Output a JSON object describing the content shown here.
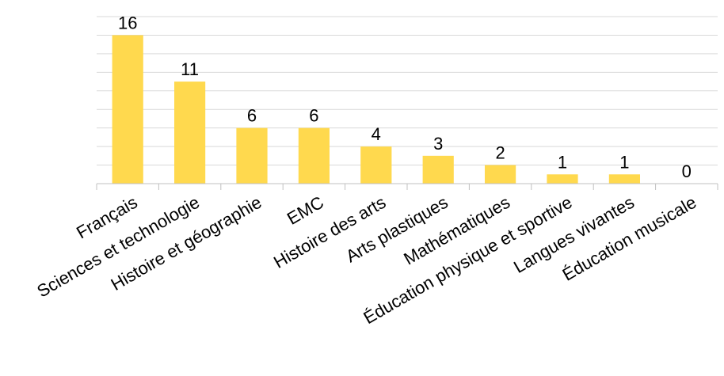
{
  "chart_data": {
    "type": "bar",
    "title": "",
    "xlabel": "",
    "ylabel": "",
    "categories": [
      "Français",
      "Sciences et technologie",
      "Histoire et géographie",
      "EMC",
      "Histoire des arts",
      "Arts plastiques",
      "Mathématiques",
      "Éducation physique et sportive",
      "Langues vivantes",
      "Éducation musicale"
    ],
    "values": [
      16,
      11,
      6,
      6,
      4,
      3,
      2,
      1,
      1,
      0
    ],
    "ylim": [
      0,
      18
    ],
    "gridlines": true,
    "bar_color": "#ffd94e",
    "data_labels": true,
    "legend": false
  }
}
